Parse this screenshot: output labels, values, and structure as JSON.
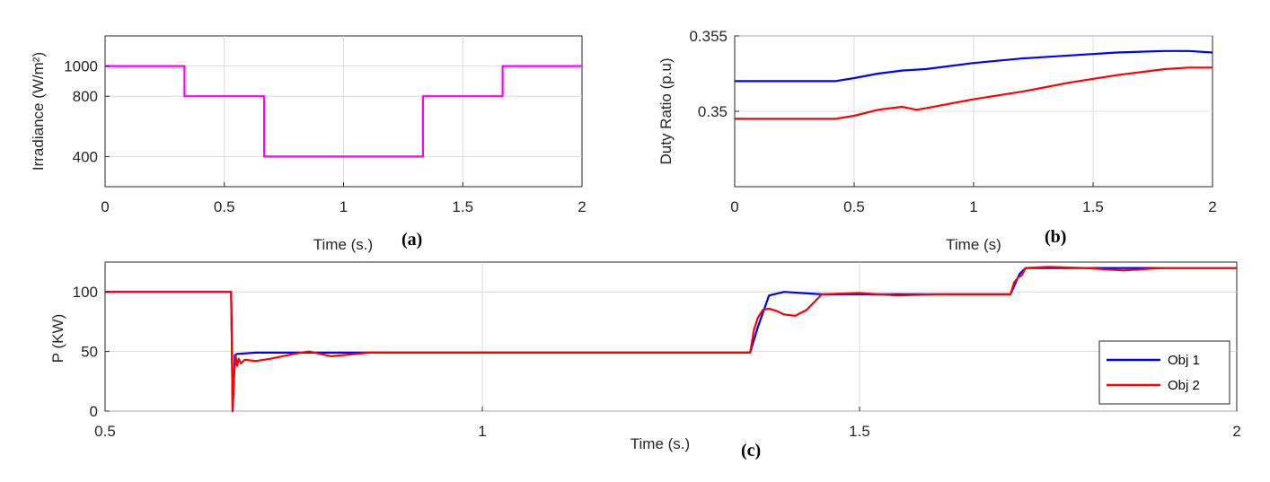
{
  "chart_data": [
    {
      "id": "a",
      "type": "line",
      "panel_label": "(a)",
      "title": "",
      "xlabel": "Time (s.)",
      "ylabel": "Irradiance (W/m²)",
      "xlim": [
        0,
        2
      ],
      "ylim": [
        200,
        1200
      ],
      "xticks": [
        0,
        0.5,
        1,
        1.5,
        2
      ],
      "xtick_labels": [
        "0",
        "0.5",
        "1",
        "1.5",
        "2"
      ],
      "yticks": [
        400,
        800,
        1000
      ],
      "ytick_labels": [
        "400",
        "800",
        "1000"
      ],
      "grid": true,
      "series": [
        {
          "name": "Irradiance",
          "color": "#ff00ff",
          "x": [
            0,
            0.333,
            0.333,
            0.667,
            0.667,
            1.333,
            1.333,
            1.667,
            1.667,
            2.0
          ],
          "y": [
            1000,
            1000,
            800,
            800,
            400,
            400,
            800,
            800,
            1000,
            1000
          ]
        }
      ]
    },
    {
      "id": "b",
      "type": "line",
      "panel_label": "(b)",
      "title": "",
      "xlabel": "Time (s)",
      "ylabel": "Duty Ratio (p.u)",
      "xlim": [
        0,
        2
      ],
      "ylim": [
        0.345,
        0.355
      ],
      "xticks": [
        0,
        0.5,
        1,
        1.5,
        2
      ],
      "xtick_labels": [
        "0",
        "0.5",
        "1",
        "1.5",
        "2"
      ],
      "yticks": [
        0.35,
        0.355
      ],
      "ytick_labels": [
        "0.35",
        "0.355"
      ],
      "grid": true,
      "series": [
        {
          "name": "Obj 1",
          "color": "#0000ff",
          "x": [
            0,
            0.42,
            0.5,
            0.6,
            0.7,
            0.8,
            1.0,
            1.2,
            1.4,
            1.6,
            1.8,
            1.9,
            2.0
          ],
          "y": [
            0.352,
            0.352,
            0.3522,
            0.3525,
            0.3527,
            0.3528,
            0.3532,
            0.3535,
            0.3537,
            0.3539,
            0.354,
            0.354,
            0.3539
          ]
        },
        {
          "name": "Obj 2",
          "color": "#ff0000",
          "x": [
            0,
            0.42,
            0.5,
            0.6,
            0.7,
            0.73,
            0.76,
            0.8,
            0.9,
            1.0,
            1.2,
            1.4,
            1.6,
            1.8,
            1.9,
            2.0
          ],
          "y": [
            0.3495,
            0.3495,
            0.3497,
            0.3501,
            0.3503,
            0.3502,
            0.3501,
            0.3502,
            0.3505,
            0.3508,
            0.3513,
            0.3519,
            0.3524,
            0.3528,
            0.3529,
            0.3529
          ]
        }
      ]
    },
    {
      "id": "c",
      "type": "line",
      "panel_label": "(c)",
      "title": "",
      "xlabel": "Time (s.)",
      "ylabel": "P (KW)",
      "xlim": [
        0.5,
        2
      ],
      "ylim": [
        0,
        125
      ],
      "xticks": [
        0.5,
        1,
        1.5,
        2
      ],
      "xtick_labels": [
        "0.5",
        "1",
        "1.5",
        "2"
      ],
      "yticks": [
        0,
        50,
        100
      ],
      "ytick_labels": [
        "0",
        "50",
        "100"
      ],
      "grid": true,
      "legend": {
        "location": "bottom-right",
        "entries": [
          "Obj 1",
          "Obj 2"
        ]
      },
      "series": [
        {
          "name": "Obj 1",
          "color": "#0000ff",
          "x": [
            0.5,
            0.667,
            0.668,
            0.669,
            0.672,
            0.675,
            0.7,
            0.75,
            0.8,
            1.0,
            1.2,
            1.355,
            1.365,
            1.375,
            1.38,
            1.4,
            1.45,
            1.5,
            1.6,
            1.7,
            1.705,
            1.712,
            1.72,
            1.75,
            1.8,
            1.9,
            2.0
          ],
          "y": [
            100,
            100,
            60,
            0,
            47,
            48,
            49,
            49,
            49,
            49,
            49,
            49,
            70,
            88,
            97,
            100,
            98,
            98,
            98,
            98,
            105,
            115,
            120,
            120,
            120,
            120,
            120
          ]
        },
        {
          "name": "Obj 2",
          "color": "#ff0000",
          "x": [
            0.5,
            0.667,
            0.668,
            0.669,
            0.671,
            0.673,
            0.675,
            0.677,
            0.68,
            0.685,
            0.7,
            0.72,
            0.75,
            0.77,
            0.8,
            0.85,
            0.9,
            1.0,
            1.2,
            1.355,
            1.36,
            1.365,
            1.372,
            1.38,
            1.39,
            1.4,
            1.415,
            1.43,
            1.45,
            1.5,
            1.55,
            1.6,
            1.7,
            1.705,
            1.71,
            1.715,
            1.72,
            1.75,
            1.8,
            1.85,
            1.9,
            2.0
          ],
          "y": [
            100,
            100,
            60,
            0,
            30,
            47,
            38,
            44,
            40,
            43,
            42,
            44,
            48,
            50,
            46,
            49,
            49,
            49,
            49,
            49,
            68,
            78,
            85,
            86,
            84,
            81,
            80,
            85,
            98,
            99,
            97,
            98,
            98,
            108,
            112,
            114,
            120,
            121,
            120,
            118,
            120,
            120
          ]
        }
      ]
    }
  ]
}
